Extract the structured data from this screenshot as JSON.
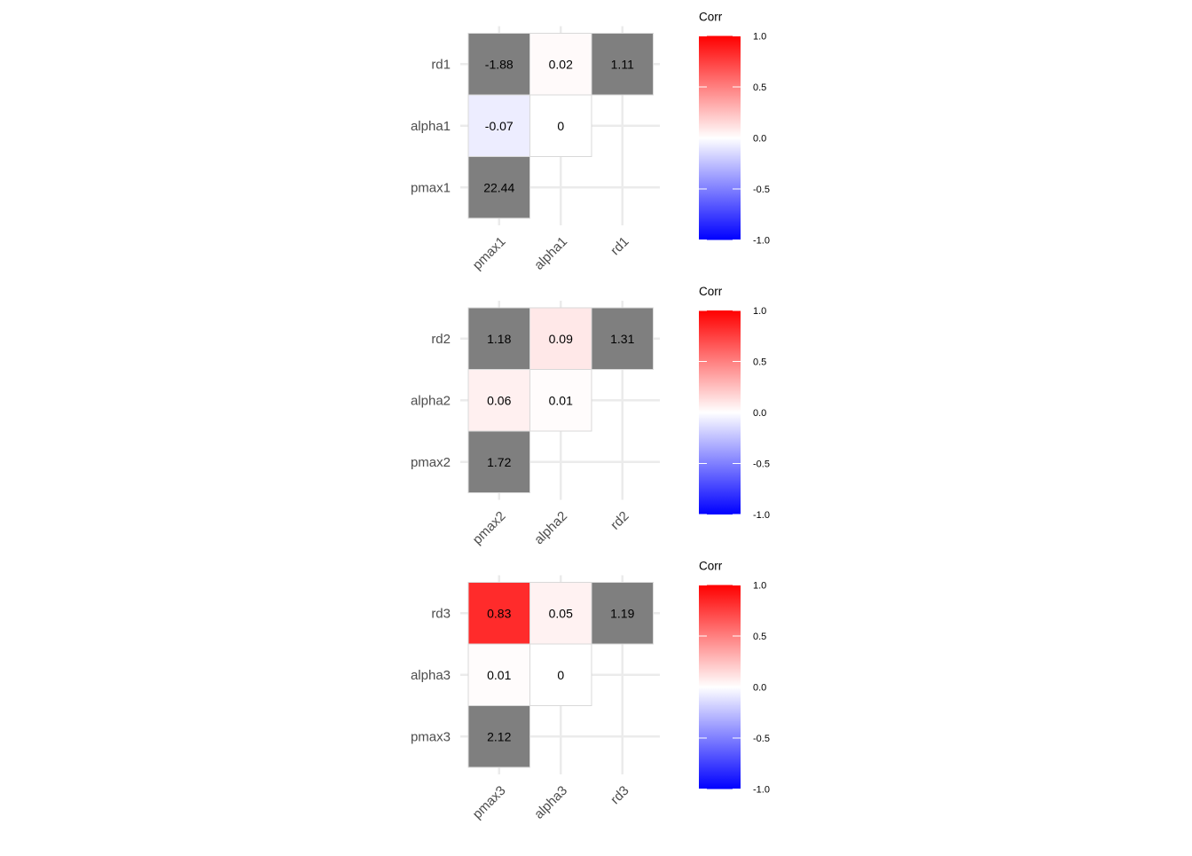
{
  "chart_data": [
    {
      "type": "heatmap",
      "x_categories": [
        "pmax1",
        "alpha1",
        "rd1"
      ],
      "y_categories": [
        "pmax1",
        "alpha1",
        "rd1"
      ],
      "cells": [
        {
          "x": "pmax1",
          "y": "rd1",
          "value": -1.88,
          "label": "-1.88"
        },
        {
          "x": "alpha1",
          "y": "rd1",
          "value": 0.02,
          "label": "0.02"
        },
        {
          "x": "rd1",
          "y": "rd1",
          "value": 1.11,
          "label": "1.11"
        },
        {
          "x": "pmax1",
          "y": "alpha1",
          "value": -0.07,
          "label": "-0.07"
        },
        {
          "x": "alpha1",
          "y": "alpha1",
          "value": 0,
          "label": "0"
        },
        {
          "x": "pmax1",
          "y": "pmax1",
          "value": 22.44,
          "label": "22.44"
        }
      ],
      "legend": {
        "title": "Corr",
        "min": -1,
        "max": 1,
        "ticks": [
          "1.0",
          "0.5",
          "0.0",
          "-0.5",
          "-1.0"
        ]
      }
    },
    {
      "type": "heatmap",
      "x_categories": [
        "pmax2",
        "alpha2",
        "rd2"
      ],
      "y_categories": [
        "pmax2",
        "alpha2",
        "rd2"
      ],
      "cells": [
        {
          "x": "pmax2",
          "y": "rd2",
          "value": 1.18,
          "label": "1.18"
        },
        {
          "x": "alpha2",
          "y": "rd2",
          "value": 0.09,
          "label": "0.09"
        },
        {
          "x": "rd2",
          "y": "rd2",
          "value": 1.31,
          "label": "1.31"
        },
        {
          "x": "pmax2",
          "y": "alpha2",
          "value": 0.06,
          "label": "0.06"
        },
        {
          "x": "alpha2",
          "y": "alpha2",
          "value": 0.01,
          "label": "0.01"
        },
        {
          "x": "pmax2",
          "y": "pmax2",
          "value": 1.72,
          "label": "1.72"
        }
      ],
      "legend": {
        "title": "Corr",
        "min": -1,
        "max": 1,
        "ticks": [
          "1.0",
          "0.5",
          "0.0",
          "-0.5",
          "-1.0"
        ]
      }
    },
    {
      "type": "heatmap",
      "x_categories": [
        "pmax3",
        "alpha3",
        "rd3"
      ],
      "y_categories": [
        "pmax3",
        "alpha3",
        "rd3"
      ],
      "cells": [
        {
          "x": "pmax3",
          "y": "rd3",
          "value": 0.83,
          "label": "0.83"
        },
        {
          "x": "alpha3",
          "y": "rd3",
          "value": 0.05,
          "label": "0.05"
        },
        {
          "x": "rd3",
          "y": "rd3",
          "value": 1.19,
          "label": "1.19"
        },
        {
          "x": "pmax3",
          "y": "alpha3",
          "value": 0.01,
          "label": "0.01"
        },
        {
          "x": "alpha3",
          "y": "alpha3",
          "value": 0,
          "label": "0"
        },
        {
          "x": "pmax3",
          "y": "pmax3",
          "value": 2.12,
          "label": "2.12"
        }
      ],
      "legend": {
        "title": "Corr",
        "min": -1,
        "max": 1,
        "ticks": [
          "1.0",
          "0.5",
          "0.0",
          "-0.5",
          "-1.0"
        ]
      }
    }
  ],
  "colors": {
    "high": "#ff0000",
    "mid": "#ffffff",
    "low": "#0000ff",
    "out_of_range": "#7f7f7f",
    "grid": "#ebebeb",
    "axis_text": "#4d4d4d"
  }
}
